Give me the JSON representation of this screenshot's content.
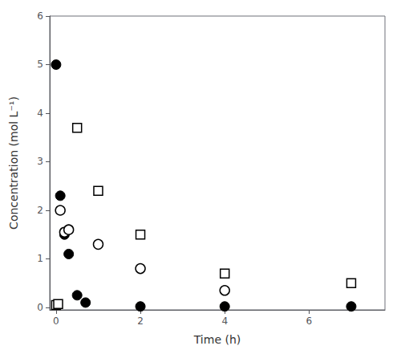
{
  "chart_data": {
    "type": "scatter",
    "xlabel": "Time (h)",
    "ylabel": "Concentration (mol L⁻¹)",
    "xlim": [
      -0.15,
      7.8
    ],
    "ylim": [
      -0.05,
      6.0
    ],
    "xticks": [
      0,
      2,
      4,
      6
    ],
    "yticks": [
      0,
      1,
      2,
      3,
      4,
      5,
      6
    ],
    "grid": false,
    "series": [
      {
        "color": "#000000",
        "marker": "circle",
        "x": [
          0,
          0.1,
          0.2,
          0.3,
          0.5,
          0.7,
          2.0,
          4.0,
          7.0
        ],
        "values": [
          5.0,
          2.3,
          1.5,
          1.1,
          0.25,
          0.1,
          0.02,
          0.02,
          0.02
        ]
      },
      {
        "color": "#000000",
        "marker": "open_circle",
        "x": [
          0.1,
          0.2,
          0.3,
          1.0,
          2.0,
          4.0
        ],
        "values": [
          2.0,
          1.55,
          1.6,
          1.3,
          0.8,
          0.35
        ]
      },
      {
        "color": "#000000",
        "marker": "open_square",
        "x": [
          0.0,
          0.05,
          0.5,
          1.0,
          2.0,
          4.0,
          7.0
        ],
        "values": [
          0.05,
          0.07,
          3.7,
          2.4,
          1.5,
          0.7,
          0.5
        ]
      }
    ]
  }
}
